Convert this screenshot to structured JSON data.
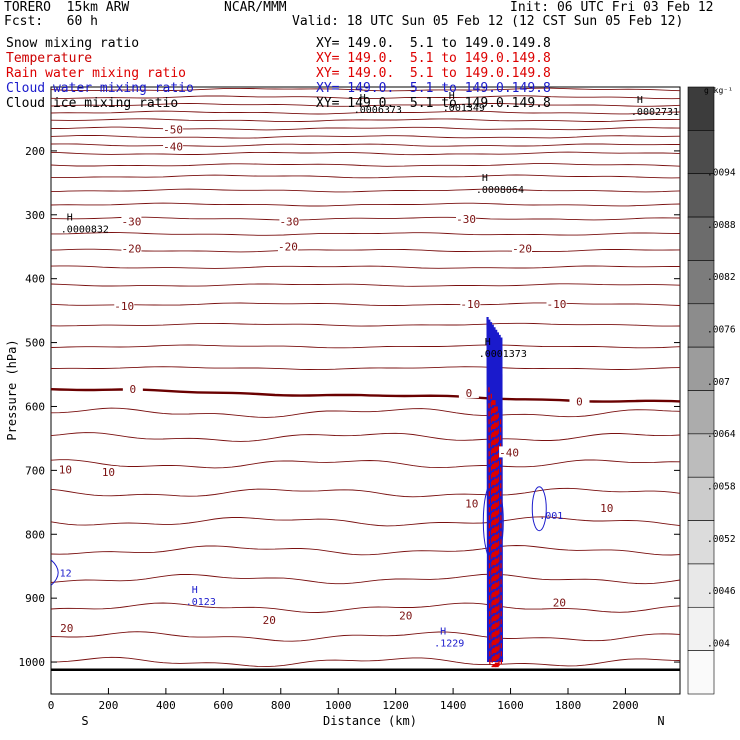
{
  "header": {
    "model": "TORERO  15km ARW",
    "org": "NCAR/MMM",
    "init": "Init: 06 UTC Fri 03 Feb 12",
    "fcst": "Fcst:   60 h",
    "valid": "Valid: 18 UTC Sun 05 Feb 12 (12 CST Sun 05 Feb 12)"
  },
  "fields": [
    {
      "label": "Snow mixing ratio",
      "xy": "XY= 149.0.  5.1 to 149.0.149.8",
      "color": "#000000"
    },
    {
      "label": "Temperature",
      "xy": "XY= 149.0.  5.1 to 149.0.149.8",
      "color": "#cc0000"
    },
    {
      "label": "Rain water mixing ratio",
      "xy": "XY= 149.0.  5.1 to 149.0.149.8",
      "color": "#dd0000"
    },
    {
      "label": "Cloud water mixing ratio",
      "xy": "XY= 149.0.  5.1 to 149.0.149.8",
      "color": "#1a1acc"
    },
    {
      "label": "Cloud ice mixing ratio",
      "xy": "XY= 149.0.  5.1 to 149.0.149.8",
      "color": "#000000"
    }
  ],
  "chart_data": {
    "type": "cross-section contour",
    "xlabel": "Distance (km)",
    "ylabel": "Pressure (hPa)",
    "xlim": [
      0,
      2190
    ],
    "ylim": [
      1050,
      100
    ],
    "x_ticks": [
      0,
      200,
      400,
      600,
      800,
      1000,
      1200,
      1400,
      1600,
      1800,
      2000
    ],
    "y_ticks": [
      200,
      300,
      400,
      500,
      600,
      700,
      800,
      900,
      1000
    ],
    "start_label": "S",
    "end_label": "N",
    "colorbar": {
      "unit": "g kg⁻¹",
      "labels": [
        ".0094",
        ".0088",
        ".0082",
        ".0076",
        ".007",
        ".0064",
        ".0058",
        ".0052",
        ".0046",
        ".004"
      ],
      "shades": [
        "#3c3c3c",
        "#4c4c4c",
        "#5c5c5c",
        "#6c6c6c",
        "#7c7c7c",
        "#8c8c8c",
        "#9c9c9c",
        "#acacac",
        "#bcbcbc",
        "#cccccc",
        "#dcdcdc",
        "#e8e8e8",
        "#f2f2f2",
        "#fafafa"
      ]
    },
    "temperature_labels": [
      {
        "text": "-50",
        "x": 425,
        "p": 170
      },
      {
        "text": "-40",
        "x": 425,
        "p": 196
      },
      {
        "text": "-30",
        "x": 280,
        "p": 314
      },
      {
        "text": "-30",
        "x": 830,
        "p": 314
      },
      {
        "text": "-30",
        "x": 1445,
        "p": 310
      },
      {
        "text": "-20",
        "x": 280,
        "p": 356
      },
      {
        "text": "-20",
        "x": 825,
        "p": 353
      },
      {
        "text": "-20",
        "x": 1640,
        "p": 356
      },
      {
        "text": "-10",
        "x": 255,
        "p": 446
      },
      {
        "text": "-10",
        "x": 1460,
        "p": 443
      },
      {
        "text": "-10",
        "x": 1760,
        "p": 443
      },
      {
        "text": "0",
        "x": 285,
        "p": 576
      },
      {
        "text": "0",
        "x": 1455,
        "p": 582
      },
      {
        "text": "0",
        "x": 1840,
        "p": 595
      },
      {
        "text": "10",
        "x": 50,
        "p": 702
      },
      {
        "text": "10",
        "x": 200,
        "p": 706
      },
      {
        "text": "10",
        "x": 1465,
        "p": 755
      },
      {
        "text": "10",
        "x": 1935,
        "p": 762
      },
      {
        "text": "20",
        "x": 55,
        "p": 950
      },
      {
        "text": "20",
        "x": 760,
        "p": 937
      },
      {
        "text": "20",
        "x": 1235,
        "p": 930
      },
      {
        "text": "20",
        "x": 1770,
        "p": 910
      },
      {
        "text": "-40",
        "x": 1595,
        "p": 675
      }
    ],
    "extrema": [
      {
        "kind": "H",
        "value": ".0006373",
        "x": 1075,
        "p": 125,
        "color": "#000000"
      },
      {
        "kind": "H",
        "value": ".001349",
        "x": 1385,
        "p": 122,
        "color": "#000000"
      },
      {
        "kind": "H",
        "value": ".0002731",
        "x": 2040,
        "p": 128,
        "color": "#000000"
      },
      {
        "kind": "H",
        "value": ".0008064",
        "x": 1500,
        "p": 250,
        "color": "#000000"
      },
      {
        "kind": "H",
        "value": ".0000832",
        "x": 55,
        "p": 312,
        "color": "#000000"
      },
      {
        "kind": "H",
        "value": ".0001373",
        "x": 1510,
        "p": 507,
        "color": "#000000"
      },
      {
        "kind": "H",
        "value": ".0123",
        "x": 490,
        "p": 895,
        "color": "#1a1acc"
      },
      {
        "kind": "H",
        "value": ".1229",
        "x": 1355,
        "p": 960,
        "color": "#1a1acc"
      }
    ],
    "cloud_labels": [
      {
        "text": ".001",
        "x": 1700,
        "p": 776
      },
      {
        "text": "12",
        "x": 30,
        "p": 866
      }
    ]
  }
}
